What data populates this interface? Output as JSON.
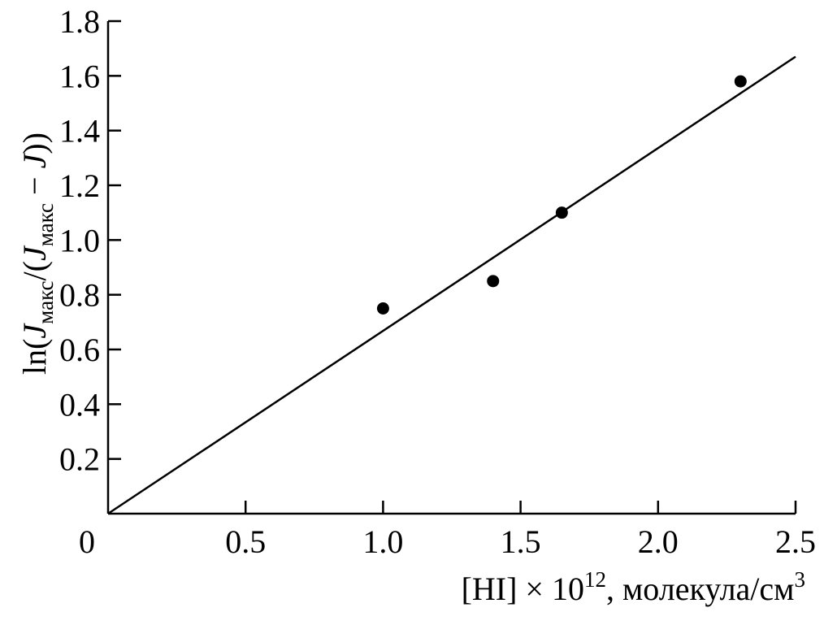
{
  "chart_data": {
    "type": "scatter",
    "title": "",
    "xlabel": {
      "prefix": "[HI] × 10",
      "superscript": "12",
      "middle": ", молекула/см",
      "unit_superscript": "3"
    },
    "ylabel": {
      "part1": "ln(",
      "j1": "J",
      "sub1": "макс",
      "part2": "/(",
      "j2": "J",
      "sub2": "макс",
      "part3": " − ",
      "j3": "J",
      "part4": "))"
    },
    "xlim": [
      0,
      2.5
    ],
    "ylim": [
      0,
      1.8
    ],
    "x_ticks": [
      {
        "value": 0,
        "label": "0"
      },
      {
        "value": 0.5,
        "label": "0.5"
      },
      {
        "value": 1.0,
        "label": "1.0"
      },
      {
        "value": 1.5,
        "label": "1.5"
      },
      {
        "value": 2.0,
        "label": "2.0"
      },
      {
        "value": 2.5,
        "label": "2.5"
      }
    ],
    "y_ticks": [
      {
        "value": 0.2,
        "label": "0.2"
      },
      {
        "value": 0.4,
        "label": "0.4"
      },
      {
        "value": 0.6,
        "label": "0.6"
      },
      {
        "value": 0.8,
        "label": "0.8"
      },
      {
        "value": 1.0,
        "label": "1.0"
      },
      {
        "value": 1.2,
        "label": "1.2"
      },
      {
        "value": 1.4,
        "label": "1.4"
      },
      {
        "value": 1.6,
        "label": "1.6"
      },
      {
        "value": 1.8,
        "label": "1.8"
      }
    ],
    "points": [
      {
        "x": 1.0,
        "y": 0.75
      },
      {
        "x": 1.4,
        "y": 0.85
      },
      {
        "x": 1.65,
        "y": 1.1
      },
      {
        "x": 2.3,
        "y": 1.58
      }
    ],
    "fit_line": {
      "x": [
        0,
        2.5
      ],
      "y": [
        0,
        1.67
      ]
    },
    "grid": false,
    "legend": "none",
    "colors": {
      "ink": "#000000",
      "background": "#ffffff"
    }
  }
}
